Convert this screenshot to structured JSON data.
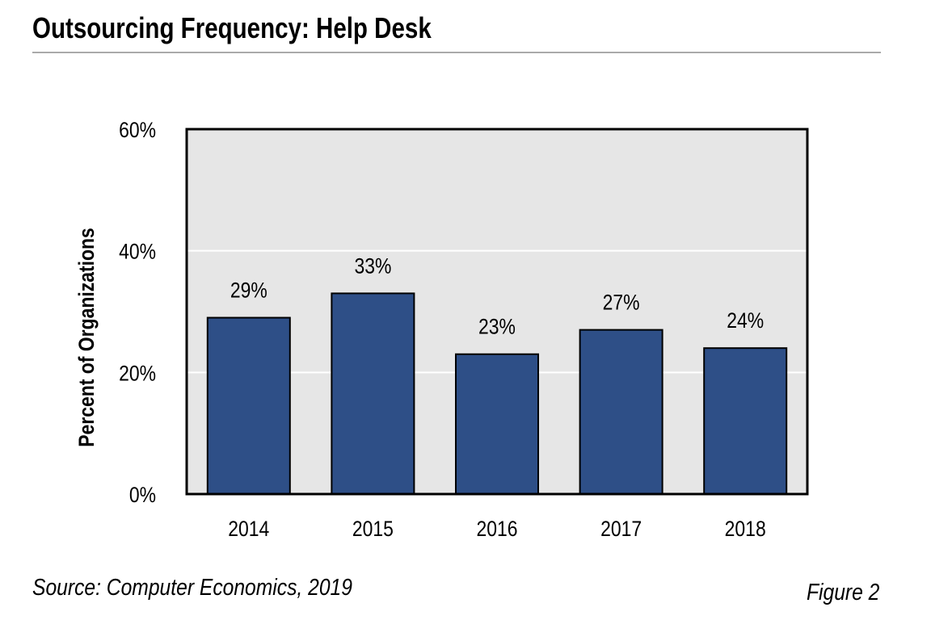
{
  "title": "Outsourcing Frequency: Help Desk",
  "source": "Source: Computer Economics, 2019",
  "figure": "Figure 2",
  "chart_data": {
    "type": "bar",
    "title": "Outsourcing Frequency: Help Desk",
    "xlabel": "",
    "ylabel": "Percent of Organizations",
    "categories": [
      "2014",
      "2015",
      "2016",
      "2017",
      "2018"
    ],
    "values": [
      29,
      33,
      23,
      27,
      24
    ],
    "data_labels": [
      "29%",
      "33%",
      "23%",
      "27%",
      "24%"
    ],
    "ylim": [
      0,
      60
    ],
    "yticks": [
      0,
      20,
      40,
      60
    ],
    "ytick_labels": [
      "0%",
      "20%",
      "40%",
      "60%"
    ],
    "grid": true,
    "colors": {
      "bar": "#2e4f87",
      "plot_bg": "#e6e6e6",
      "grid": "#ffffff"
    }
  }
}
